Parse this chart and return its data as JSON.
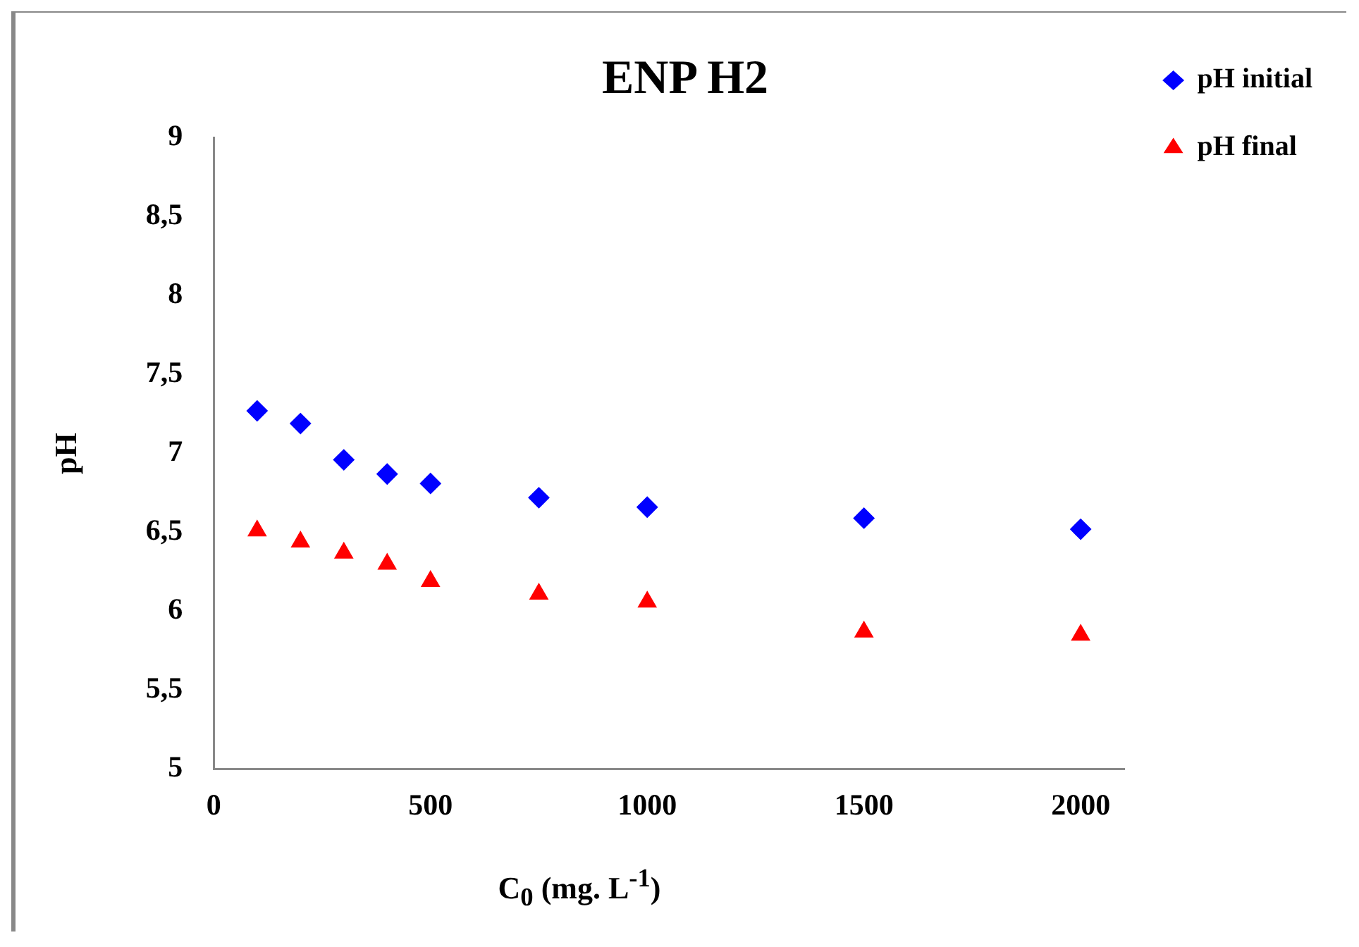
{
  "chart_data": {
    "type": "scatter",
    "title": "ENP H2",
    "xlabel": "C$_{0}$ (mg. L$^{-1}$)",
    "ylabel": "pH",
    "x": [
      100,
      200,
      300,
      400,
      500,
      750,
      1000,
      1500,
      2000
    ],
    "series": [
      {
        "name": "pH initial",
        "color": "#0000ff",
        "marker": "diamond",
        "values": [
          7.27,
          7.19,
          6.96,
          6.87,
          6.81,
          6.72,
          6.66,
          6.59,
          6.52
        ]
      },
      {
        "name": "pH final",
        "color": "#ff0000",
        "marker": "triangle",
        "values": [
          6.51,
          6.44,
          6.37,
          6.3,
          6.19,
          6.11,
          6.06,
          5.87,
          5.85
        ]
      }
    ],
    "xlim": [
      0,
      2100
    ],
    "xticks": [
      0,
      500,
      1000,
      1500,
      2000
    ],
    "ylim": [
      5,
      9
    ],
    "yticks": [
      5,
      {
        "value": 5.5,
        "label": "5,5"
      },
      6,
      {
        "value": 6.5,
        "label": "6,5"
      },
      7,
      {
        "value": 7.5,
        "label": "7,5"
      },
      8,
      {
        "value": 8.5,
        "label": "8,5"
      },
      9
    ],
    "grid": false,
    "legend": "right"
  }
}
